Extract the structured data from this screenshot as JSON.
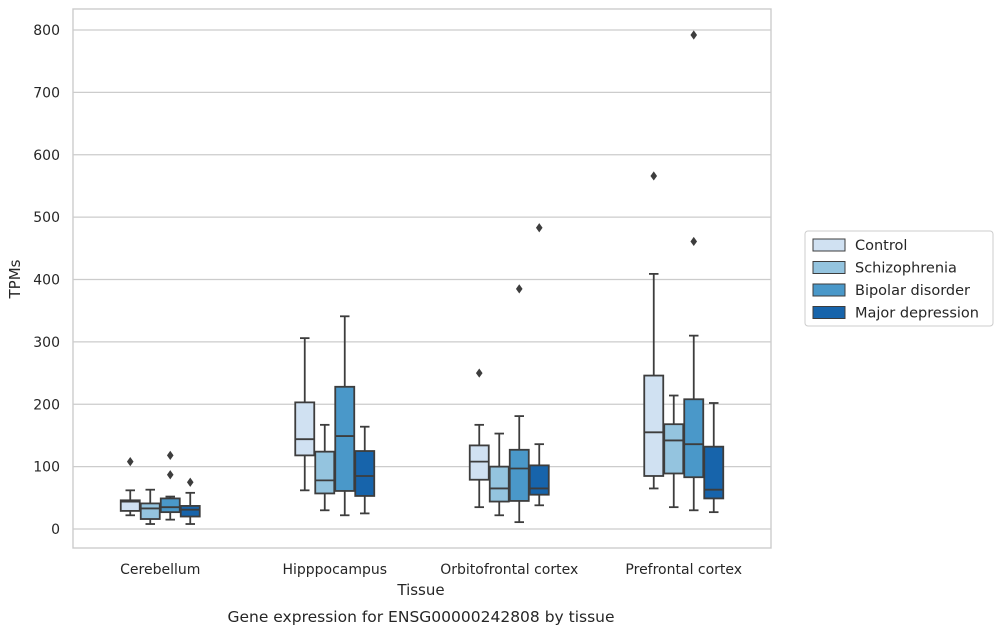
{
  "chart_data": {
    "type": "box",
    "caption": "Gene expression for ENSG00000242808 by tissue",
    "xlabel": "Tissue",
    "ylabel": "TPMs",
    "ylim": [
      -30,
      830
    ],
    "yticks": [
      0,
      100,
      200,
      300,
      400,
      500,
      600,
      700,
      800
    ],
    "grid": true,
    "legend_position": "right",
    "categories": [
      "Cerebellum",
      "Hipppocampus",
      "Orbitofrontal cortex",
      "Prefrontal cortex"
    ],
    "series": [
      {
        "name": "Control",
        "color": "#d0e1f2",
        "boxes": [
          {
            "whislo": 22,
            "q1": 29,
            "med": 44,
            "q3": 46,
            "whishi": 62,
            "fliers": [
              108
            ]
          },
          {
            "whislo": 62,
            "q1": 118,
            "med": 144,
            "q3": 203,
            "whishi": 306,
            "fliers": []
          },
          {
            "whislo": 35,
            "q1": 79,
            "med": 108,
            "q3": 134,
            "whislo_note": "",
            "whishi": 167,
            "fliers": [
              250
            ]
          },
          {
            "whislo": 65,
            "q1": 85,
            "med": 155,
            "q3": 246,
            "whishi": 409,
            "fliers": [
              566
            ]
          }
        ]
      },
      {
        "name": "Schizophrenia",
        "color": "#94c4df",
        "boxes": [
          {
            "whislo": 8,
            "q1": 16,
            "med": 33,
            "q3": 41,
            "whishi": 63,
            "fliers": []
          },
          {
            "whislo": 30,
            "q1": 57,
            "med": 78,
            "q3": 124,
            "whishi": 167,
            "fliers": []
          },
          {
            "whislo": 22,
            "q1": 44,
            "med": 65,
            "q3": 100,
            "whishi": 153,
            "fliers": []
          },
          {
            "whislo": 35,
            "q1": 89,
            "med": 142,
            "q3": 168,
            "whishi": 214,
            "fliers": []
          }
        ]
      },
      {
        "name": "Bipolar disorder",
        "color": "#4a98c9",
        "boxes": [
          {
            "whislo": 15,
            "q1": 27,
            "med": 35,
            "q3": 49,
            "whishi": 52,
            "fliers": [
              87,
              118
            ]
          },
          {
            "whislo": 22,
            "q1": 61,
            "med": 149,
            "q3": 228,
            "whishi": 341,
            "fliers": []
          },
          {
            "whislo": 11,
            "q1": 45,
            "med": 97,
            "q3": 127,
            "whishi": 181,
            "fliers": [
              385
            ]
          },
          {
            "whislo": 30,
            "q1": 83,
            "med": 136,
            "q3": 208,
            "whishi": 310,
            "fliers": [
              461,
              792
            ]
          }
        ]
      },
      {
        "name": "Major depression",
        "color": "#1764ab",
        "boxes": [
          {
            "whislo": 8,
            "q1": 20,
            "med": 31,
            "q3": 37,
            "whishi": 58,
            "fliers": [
              75
            ]
          },
          {
            "whislo": 25,
            "q1": 53,
            "med": 85,
            "q3": 125,
            "whishi": 164,
            "fliers": []
          },
          {
            "whislo": 38,
            "q1": 55,
            "med": 65,
            "q3": 102,
            "whishi": 136,
            "fliers": [
              483
            ]
          },
          {
            "whislo": 27,
            "q1": 49,
            "med": 63,
            "q3": 132,
            "whishi": 202,
            "fliers": []
          }
        ]
      }
    ]
  }
}
